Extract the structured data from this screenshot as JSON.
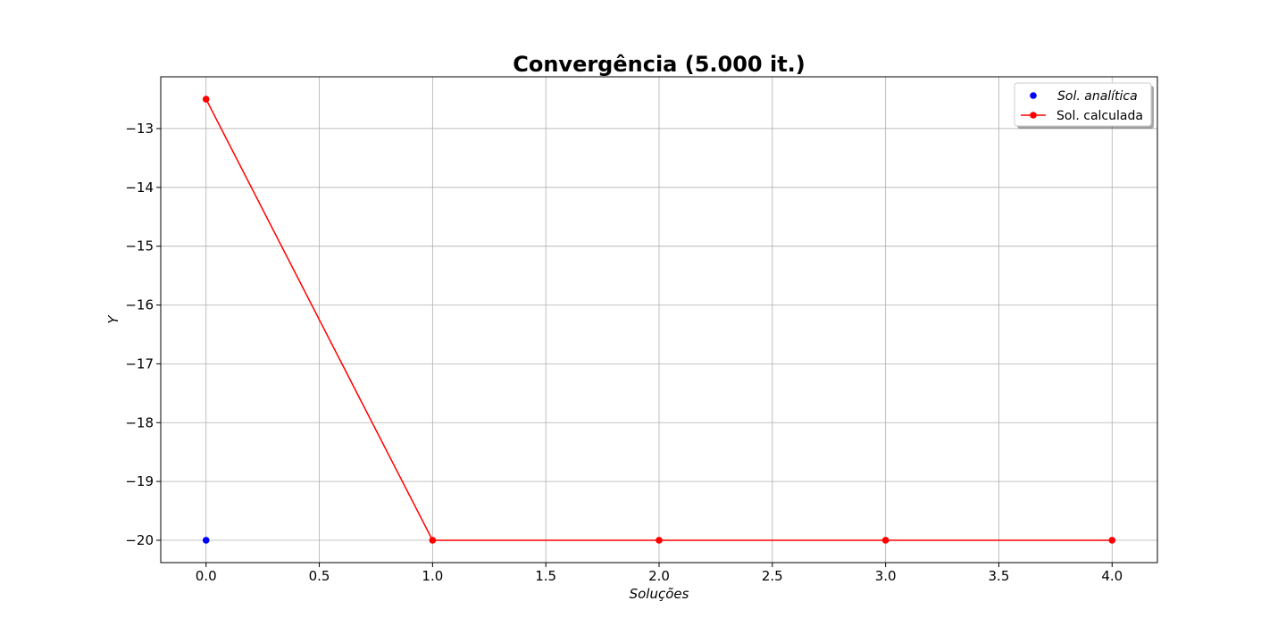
{
  "chart_data": {
    "type": "line",
    "title": "Convergência (5.000 it.)",
    "xlabel": "Soluções",
    "ylabel": "Y",
    "xlim": [
      -0.2,
      4.2
    ],
    "ylim": [
      -20.38,
      -12.12
    ],
    "xticks": [
      0.0,
      0.5,
      1.0,
      1.5,
      2.0,
      2.5,
      3.0,
      3.5,
      4.0
    ],
    "xtick_labels": [
      "0.0",
      "0.5",
      "1.0",
      "1.5",
      "2.0",
      "2.5",
      "3.0",
      "3.5",
      "4.0"
    ],
    "yticks": [
      -13,
      -14,
      -15,
      -16,
      -17,
      -18,
      -19,
      -20
    ],
    "ytick_labels": [
      "−13",
      "−14",
      "−15",
      "−16",
      "−17",
      "−18",
      "−19",
      "−20"
    ],
    "grid": true,
    "legend_position": "top-right",
    "series": [
      {
        "name": "Sol. analítica",
        "style": "markers",
        "color": "#0000ff",
        "x": [
          0
        ],
        "y": [
          -20
        ]
      },
      {
        "name": "Sol. calculada",
        "style": "line-markers",
        "color": "#ff0000",
        "x": [
          0,
          1,
          2,
          3,
          4
        ],
        "y": [
          -12.5,
          -20,
          -20,
          -20,
          -20
        ]
      }
    ]
  }
}
